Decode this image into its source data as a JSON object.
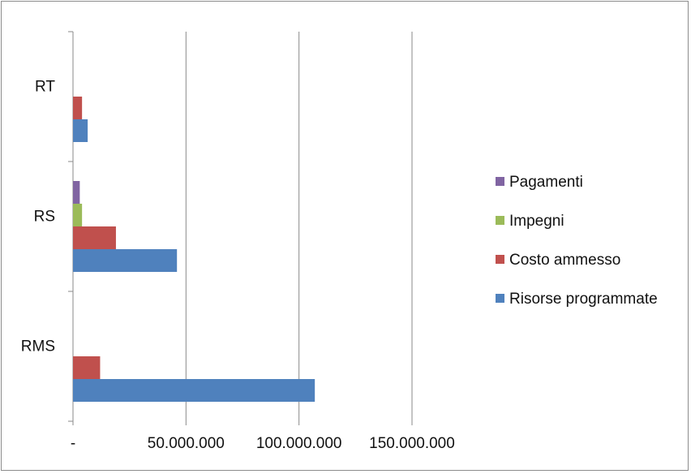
{
  "chart_data": {
    "type": "bar",
    "orientation": "horizontal",
    "categories": [
      "RT",
      "RS",
      "RMS"
    ],
    "x_tick_labels": [
      "-",
      "50.000.000",
      "100.000.000",
      "150.000.000"
    ],
    "xlim": [
      0,
      150000000
    ],
    "grid": "vertical",
    "legend_position": "right",
    "series": [
      {
        "name": "Pagamenti",
        "color": "#8064A2",
        "values": [
          0,
          3000000,
          0
        ]
      },
      {
        "name": "Impegni",
        "color": "#9BBB59",
        "values": [
          0,
          4000000,
          0
        ]
      },
      {
        "name": "Costo ammesso",
        "color": "#C0504D",
        "values": [
          4000000,
          19000000,
          12000000
        ]
      },
      {
        "name": "Risorse programmate",
        "color": "#4F81BD",
        "values": [
          6500000,
          46000000,
          107000000
        ]
      }
    ]
  }
}
